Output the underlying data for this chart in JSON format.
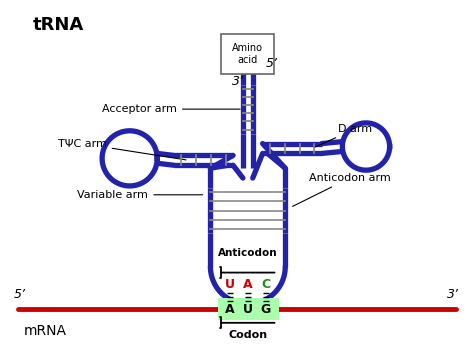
{
  "bg_color": "#ffffff",
  "trna_color": "#2222aa",
  "mrna_color": "#cc0000",
  "codon_bg": "#aaffaa",
  "trna_lw": 3.8,
  "mrna_lw": 3.5,
  "labels": {
    "trna": "tRNA",
    "mrna": "mRNA",
    "acceptor_arm": "Acceptor arm",
    "tpsi_arm": "TΨC arm",
    "d_arm": "D arm",
    "variable_arm": "Variable arm",
    "anticodon_arm": "Anticodon arm",
    "anticodon": "Anticodon",
    "codon": "Codon",
    "amino_acid": "Amino\nacid",
    "five_prime_trna": "5’",
    "three_prime_trna": "3’",
    "five_prime_mrna": "5’",
    "three_prime_mrna": "3’"
  },
  "anticodon_bases": [
    "U",
    "A",
    "C"
  ],
  "codon_bases": [
    "A",
    "U",
    "G"
  ],
  "anticodon_base_colors": [
    "#cc0000",
    "#cc0000",
    "#228B22"
  ],
  "codon_base_colors": [
    "#000000",
    "#000000",
    "#000000"
  ]
}
